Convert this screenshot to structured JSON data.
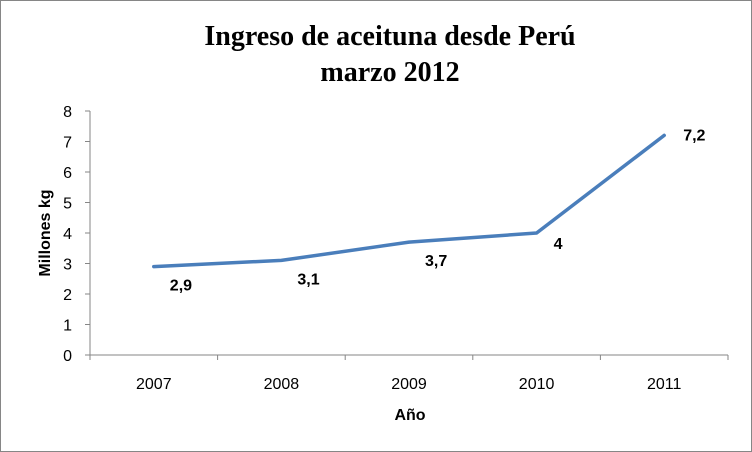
{
  "chart_data": {
    "type": "line",
    "title": [
      "Ingreso de aceituna desde Perú",
      "marzo 2012"
    ],
    "xlabel": "Año",
    "ylabel": "Millones kg",
    "categories": [
      "2007",
      "2008",
      "2009",
      "2010",
      "2011"
    ],
    "series": [
      {
        "values": [
          2.9,
          3.1,
          3.7,
          4,
          7.2
        ],
        "labels": [
          "2,9",
          "3,1",
          "3,7",
          "4",
          "7,2"
        ],
        "color": "#4a7ebb"
      }
    ],
    "ylim": [
      0,
      8
    ],
    "yticks": [
      "0",
      "1",
      "2",
      "3",
      "4",
      "5",
      "6",
      "7",
      "8"
    ],
    "grid": false,
    "legend": "none"
  }
}
